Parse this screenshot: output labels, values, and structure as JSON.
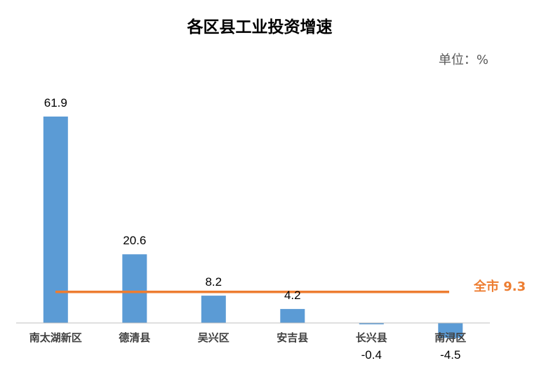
{
  "chart_data": {
    "type": "bar",
    "title": "各区县工业投资增速",
    "unit_label": "单位：%",
    "categories": [
      "南太湖新区",
      "德清县",
      "吴兴区",
      "安吉县",
      "长兴县",
      "南浔区"
    ],
    "values": [
      61.9,
      20.6,
      8.2,
      4.2,
      -0.4,
      -4.5
    ],
    "data_labels": [
      "61.9",
      "20.6",
      "8.2",
      "4.2",
      "-0.4",
      "-4.5"
    ],
    "reference_line": {
      "label": "全市 9.3",
      "value": 9.3
    },
    "bar_color": "#5B9BD5",
    "reference_color": "#ED7D31",
    "axis_color": "#BFBFBF",
    "ylim": [
      -4.5,
      61.9
    ],
    "grid": false,
    "legend": "none"
  }
}
